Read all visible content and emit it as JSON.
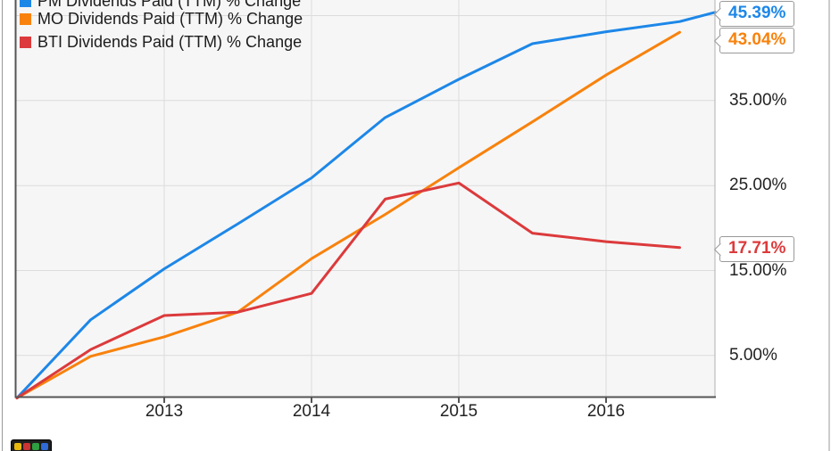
{
  "legend": {
    "items": [
      {
        "label": "PM Dividends Paid (TTM) % Change",
        "color": "#1d87e8",
        "note": "top row clipped by image edge"
      },
      {
        "label": "MO Dividends Paid (TTM) % Change",
        "color": "#f8820d"
      },
      {
        "label": "BTI Dividends Paid (TTM) % Change",
        "color": "#dc3a3c"
      }
    ]
  },
  "chart_data": {
    "type": "line",
    "title": "",
    "x_axis": {
      "tick_labels": [
        "2013",
        "2014",
        "2015",
        "2016"
      ],
      "tick_years": [
        2013,
        2014,
        2015,
        2016
      ],
      "range": [
        2012,
        2016.75
      ],
      "grid": true
    },
    "y_axis": {
      "side": "right",
      "unit": "%",
      "tick_labels": [
        "35.00%",
        "25.00%",
        "15.00%",
        "5.00%"
      ],
      "tick_values": [
        35,
        25,
        15,
        5
      ],
      "gridline_values": [
        45,
        35,
        25,
        15,
        5
      ],
      "range": [
        0,
        47
      ],
      "grid": true
    },
    "series": [
      {
        "name": "PM Dividends Paid (TTM) % Change",
        "color": "#1d87e8",
        "end_label": "45.39%",
        "points": [
          [
            2012,
            0
          ],
          [
            2012.5,
            9.2
          ],
          [
            2013,
            15.2
          ],
          [
            2013.5,
            20.5
          ],
          [
            2014,
            25.9
          ],
          [
            2014.5,
            33.0
          ],
          [
            2015,
            37.5
          ],
          [
            2015.5,
            41.7
          ],
          [
            2016,
            43.1
          ],
          [
            2016.5,
            44.3
          ],
          [
            2016.74,
            45.39
          ]
        ]
      },
      {
        "name": "MO Dividends Paid (TTM) % Change",
        "color": "#f8820d",
        "end_label": "43.04%",
        "points": [
          [
            2012,
            0
          ],
          [
            2012.5,
            4.9
          ],
          [
            2013,
            7.2
          ],
          [
            2013.5,
            10.1
          ],
          [
            2014,
            16.4
          ],
          [
            2014.5,
            21.6
          ],
          [
            2015,
            27.1
          ],
          [
            2015.5,
            32.5
          ],
          [
            2016,
            38.0
          ],
          [
            2016.5,
            43.04
          ]
        ]
      },
      {
        "name": "BTI Dividends Paid (TTM) % Change",
        "color": "#dc3a3c",
        "end_label": "17.71%",
        "points": [
          [
            2012,
            0
          ],
          [
            2012.5,
            5.7
          ],
          [
            2013,
            9.7
          ],
          [
            2013.5,
            10.1
          ],
          [
            2014,
            12.3
          ],
          [
            2014.5,
            23.4
          ],
          [
            2015,
            25.3
          ],
          [
            2015.5,
            19.4
          ],
          [
            2016,
            18.4
          ],
          [
            2016.5,
            17.71
          ]
        ]
      }
    ],
    "callouts": [
      {
        "text": "45.39%",
        "color": "#1d87e8"
      },
      {
        "text": "43.04%",
        "color": "#f8820d"
      },
      {
        "text": "17.71%",
        "color": "#dc3a3c"
      }
    ],
    "legend_position": "top-left",
    "plot_background": "#f6f6f6"
  },
  "logo": {
    "name": "chart-provider-logo"
  }
}
